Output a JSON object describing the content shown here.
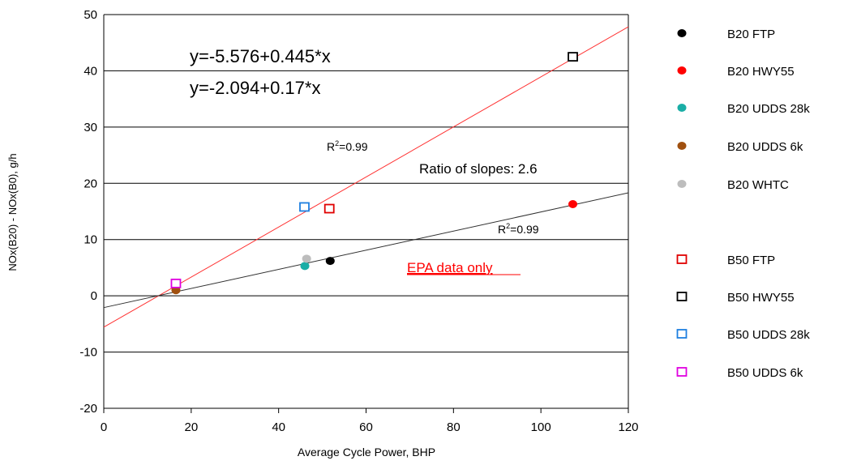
{
  "chart_data": {
    "type": "scatter",
    "title": "",
    "xlabel": "Average Cycle Power, BHP",
    "ylabel": "NOx(B20) - NOx(B0), g/h",
    "xlim": [
      0,
      120
    ],
    "ylim": [
      -20,
      50
    ],
    "xticks": [
      0,
      20,
      40,
      60,
      80,
      100,
      120
    ],
    "yticks": [
      -20,
      -10,
      0,
      10,
      20,
      30,
      40,
      50
    ],
    "grid": "horizontal",
    "legend_position": "right",
    "series": [
      {
        "name": "B20 FTP",
        "marker": "circle",
        "color": "#000000",
        "points": [
          [
            51.8,
            6.2
          ]
        ]
      },
      {
        "name": "B20 HWY55",
        "marker": "circle",
        "color": "#ff0000",
        "points": [
          [
            107.3,
            16.3
          ]
        ]
      },
      {
        "name": "B20 UDDS 28k",
        "marker": "circle",
        "color": "#1aaea6",
        "points": [
          [
            46.0,
            5.3
          ]
        ]
      },
      {
        "name": "B20 UDDS 6k",
        "marker": "circle",
        "color": "#a0500f",
        "points": [
          [
            16.5,
            1.0
          ]
        ]
      },
      {
        "name": "B20 WHTC",
        "marker": "circle",
        "color": "#bdbdbd",
        "points": [
          [
            46.4,
            6.6
          ]
        ]
      },
      {
        "name": "B50 FTP",
        "marker": "square-open",
        "color": "#e00000",
        "points": [
          [
            51.6,
            15.5
          ]
        ]
      },
      {
        "name": "B50 HWY55",
        "marker": "square-open",
        "color": "#000000",
        "points": [
          [
            107.3,
            42.5
          ]
        ]
      },
      {
        "name": "B50 UDDS 28k",
        "marker": "square-open",
        "color": "#1e7fe0",
        "points": [
          [
            45.9,
            15.8
          ]
        ]
      },
      {
        "name": "B50 UDDS 6k",
        "marker": "square-open",
        "color": "#e000e0",
        "points": [
          [
            16.5,
            2.2
          ]
        ]
      }
    ],
    "fit_lines": [
      {
        "intercept": -5.576,
        "slope": 0.445,
        "color": "#ff3030",
        "x_range": [
          0,
          120
        ]
      },
      {
        "intercept": -2.094,
        "slope": 0.17,
        "color": "#303030",
        "x_range": [
          0,
          120
        ]
      }
    ],
    "annotations": {
      "eq1": "y=-5.576+0.445*x",
      "eq2": "y=-2.094+0.17*x",
      "r2_b50_prefix": "R",
      "r2_b50_sup": "2",
      "r2_b50_value": "=0.99",
      "r2_b20_prefix": "R",
      "r2_b20_sup": "2",
      "r2_b20_value": "=0.99",
      "ratio": "Ratio of slopes: 2.6",
      "epa_note": "EPA data only",
      "epa_color": "#ff0000"
    }
  }
}
